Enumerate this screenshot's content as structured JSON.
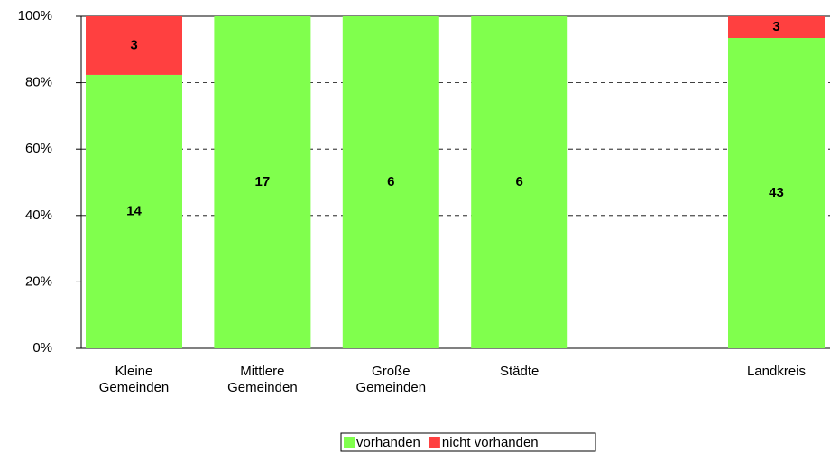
{
  "chart_data": {
    "type": "bar",
    "stacking": "percent",
    "categories": [
      "Kleine Gemeinden",
      "Mittlere Gemeinden",
      "Große Gemeinden",
      "Städte",
      null,
      "Landkreis"
    ],
    "series": [
      {
        "name": "vorhanden",
        "color": "#80ff4d",
        "values": [
          14,
          17,
          6,
          6,
          null,
          43
        ]
      },
      {
        "name": "nicht vorhanden",
        "color": "#ff4040",
        "values": [
          3,
          0,
          0,
          0,
          null,
          3
        ]
      }
    ],
    "ylim": [
      0,
      100
    ],
    "yticks": [
      {
        "value": 0,
        "label": "0%"
      },
      {
        "value": 20,
        "label": "20%"
      },
      {
        "value": 40,
        "label": "40%"
      },
      {
        "value": 60,
        "label": "60%"
      },
      {
        "value": 80,
        "label": "80%"
      },
      {
        "value": 100,
        "label": "100%"
      }
    ],
    "grid": true,
    "legend": "bottom"
  }
}
